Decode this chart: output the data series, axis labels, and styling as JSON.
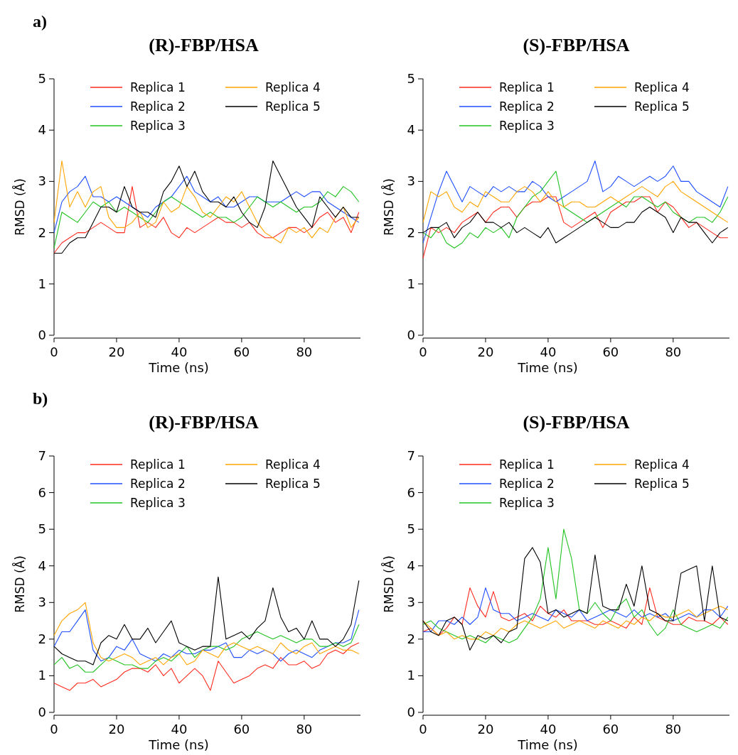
{
  "chart_data": [
    {
      "type": "line",
      "title": "(R)-FBP/HSA",
      "annotations": [
        "a)"
      ],
      "xlabel": "Time (ns)",
      "ylabel": "RMSD (Å)",
      "xlim": [
        0,
        98
      ],
      "xticks": [
        0,
        20,
        40,
        60,
        80
      ],
      "ylim": [
        0,
        5
      ],
      "yticks": [
        0,
        1,
        2,
        3,
        4,
        5
      ],
      "legend": "top right",
      "grid": false,
      "marker": "none",
      "line_style": "solid",
      "x": [
        0,
        2.5,
        5,
        7.5,
        10,
        12.5,
        15,
        17.5,
        20,
        22.5,
        25,
        27.5,
        30,
        32.5,
        35,
        37.5,
        40,
        42.5,
        45,
        47.5,
        50,
        52.5,
        55,
        57.5,
        60,
        62.5,
        65,
        67.5,
        70,
        72.5,
        75,
        77.5,
        80,
        82.5,
        85,
        87.5,
        90,
        92.5,
        95,
        97.5
      ],
      "series": [
        {
          "name": "Replica 1",
          "color": "#ff2a1e",
          "values": [
            1.6,
            1.8,
            1.9,
            2.0,
            2.0,
            2.1,
            2.2,
            2.1,
            2.0,
            2.0,
            2.9,
            2.1,
            2.2,
            2.1,
            2.3,
            2.0,
            1.9,
            2.1,
            2.0,
            2.1,
            2.2,
            2.3,
            2.2,
            2.2,
            2.1,
            2.2,
            2.0,
            1.9,
            1.9,
            2.0,
            2.1,
            2.1,
            2.0,
            2.1,
            2.3,
            2.4,
            2.2,
            2.3,
            2.0,
            2.4
          ]
        },
        {
          "name": "Replica 2",
          "color": "#1f4fff",
          "values": [
            2.0,
            2.6,
            2.8,
            2.9,
            3.1,
            2.7,
            2.7,
            2.6,
            2.7,
            2.6,
            2.5,
            2.4,
            2.3,
            2.5,
            2.6,
            2.7,
            2.9,
            3.1,
            2.8,
            2.7,
            2.6,
            2.7,
            2.5,
            2.5,
            2.6,
            2.7,
            2.7,
            2.6,
            2.6,
            2.6,
            2.7,
            2.8,
            2.7,
            2.8,
            2.8,
            2.6,
            2.5,
            2.4,
            2.3,
            2.2
          ]
        },
        {
          "name": "Replica 3",
          "color": "#22c322",
          "values": [
            1.7,
            2.4,
            2.3,
            2.2,
            2.4,
            2.6,
            2.5,
            2.6,
            2.4,
            2.5,
            2.4,
            2.3,
            2.2,
            2.4,
            2.6,
            2.7,
            2.6,
            2.5,
            2.4,
            2.3,
            2.4,
            2.3,
            2.3,
            2.2,
            2.3,
            2.5,
            2.7,
            2.6,
            2.5,
            2.6,
            2.5,
            2.4,
            2.5,
            2.5,
            2.6,
            2.8,
            2.7,
            2.9,
            2.8,
            2.6
          ]
        },
        {
          "name": "Replica 4",
          "color": "#ffa500",
          "values": [
            2.2,
            3.4,
            2.5,
            2.8,
            2.5,
            2.8,
            2.9,
            2.3,
            2.1,
            2.1,
            2.2,
            2.4,
            2.1,
            2.2,
            2.6,
            2.4,
            2.5,
            2.9,
            2.7,
            2.4,
            2.3,
            2.5,
            2.7,
            2.6,
            2.8,
            2.5,
            2.2,
            2.0,
            1.9,
            1.8,
            2.1,
            2.0,
            2.1,
            1.9,
            2.1,
            2.0,
            2.3,
            2.5,
            2.1,
            2.3
          ]
        },
        {
          "name": "Replica 5",
          "color": "#000000",
          "values": [
            1.6,
            1.6,
            1.8,
            1.9,
            1.9,
            2.2,
            2.5,
            2.5,
            2.4,
            2.9,
            2.5,
            2.4,
            2.4,
            2.3,
            2.8,
            3.0,
            3.3,
            2.9,
            3.2,
            2.8,
            2.6,
            2.6,
            2.5,
            2.7,
            2.4,
            2.2,
            2.1,
            2.5,
            3.4,
            3.1,
            2.8,
            2.5,
            2.3,
            2.1,
            2.7,
            2.5,
            2.3,
            2.5,
            2.3,
            2.3
          ]
        }
      ]
    },
    {
      "type": "line",
      "title": "(S)-FBP/HSA",
      "xlabel": "Time (ns)",
      "ylabel": "RMSD (Å)",
      "xlim": [
        0,
        98
      ],
      "xticks": [
        0,
        20,
        40,
        60,
        80
      ],
      "ylim": [
        0,
        5
      ],
      "yticks": [
        0,
        1,
        2,
        3,
        4,
        5
      ],
      "legend": "top right",
      "grid": false,
      "marker": "none",
      "line_style": "solid",
      "x": [
        0,
        2.5,
        5,
        7.5,
        10,
        12.5,
        15,
        17.5,
        20,
        22.5,
        25,
        27.5,
        30,
        32.5,
        35,
        37.5,
        40,
        42.5,
        45,
        47.5,
        50,
        52.5,
        55,
        57.5,
        60,
        62.5,
        65,
        67.5,
        70,
        72.5,
        75,
        77.5,
        80,
        82.5,
        85,
        87.5,
        90,
        92.5,
        95,
        97.5
      ],
      "series": [
        {
          "name": "Replica 1",
          "color": "#ff2a1e",
          "values": [
            1.5,
            2.1,
            2.0,
            2.1,
            2.0,
            2.2,
            2.3,
            2.4,
            2.2,
            2.4,
            2.5,
            2.5,
            2.3,
            2.5,
            2.6,
            2.6,
            2.7,
            2.7,
            2.2,
            2.1,
            2.2,
            2.3,
            2.4,
            2.1,
            2.4,
            2.5,
            2.6,
            2.6,
            2.7,
            2.7,
            2.4,
            2.6,
            2.5,
            2.3,
            2.1,
            2.2,
            2.1,
            2.0,
            1.9,
            1.9
          ]
        },
        {
          "name": "Replica 2",
          "color": "#1f4fff",
          "values": [
            1.8,
            2.3,
            2.8,
            3.2,
            2.9,
            2.6,
            2.9,
            2.8,
            2.7,
            2.9,
            2.8,
            2.9,
            2.8,
            2.8,
            3.0,
            2.9,
            2.7,
            2.6,
            2.7,
            2.8,
            2.9,
            3.0,
            3.4,
            2.8,
            2.9,
            3.1,
            3.0,
            2.9,
            3.0,
            3.1,
            3.0,
            3.1,
            3.3,
            3.0,
            3.0,
            2.8,
            2.7,
            2.6,
            2.5,
            2.9
          ]
        },
        {
          "name": "Replica 3",
          "color": "#22c322",
          "values": [
            2.0,
            1.9,
            2.1,
            1.8,
            1.7,
            1.8,
            2.0,
            1.9,
            2.1,
            2.0,
            2.1,
            1.9,
            2.3,
            2.5,
            2.7,
            2.8,
            3.0,
            3.2,
            2.5,
            2.4,
            2.3,
            2.2,
            2.3,
            2.4,
            2.5,
            2.6,
            2.5,
            2.7,
            2.7,
            2.6,
            2.5,
            2.6,
            2.4,
            2.3,
            2.2,
            2.3,
            2.3,
            2.2,
            2.4,
            2.7
          ]
        },
        {
          "name": "Replica 4",
          "color": "#ffa500",
          "values": [
            2.2,
            2.8,
            2.7,
            2.8,
            2.5,
            2.4,
            2.6,
            2.5,
            2.8,
            2.7,
            2.6,
            2.6,
            2.8,
            2.9,
            2.8,
            2.6,
            2.8,
            2.6,
            2.5,
            2.6,
            2.6,
            2.5,
            2.5,
            2.6,
            2.7,
            2.6,
            2.7,
            2.8,
            2.9,
            2.8,
            2.7,
            2.9,
            3.0,
            2.8,
            2.7,
            2.6,
            2.5,
            2.4,
            2.3,
            2.2
          ]
        },
        {
          "name": "Replica 5",
          "color": "#000000",
          "values": [
            2.0,
            2.1,
            2.1,
            2.2,
            1.9,
            2.1,
            2.2,
            2.4,
            2.2,
            2.2,
            2.1,
            2.2,
            2.0,
            2.1,
            2.0,
            1.9,
            2.1,
            1.8,
            1.9,
            2.0,
            2.1,
            2.2,
            2.3,
            2.2,
            2.1,
            2.1,
            2.2,
            2.2,
            2.4,
            2.5,
            2.4,
            2.3,
            2.0,
            2.3,
            2.2,
            2.2,
            2.0,
            1.8,
            2.0,
            2.1
          ]
        }
      ]
    },
    {
      "type": "line",
      "title": "(R)-FBP/HSA",
      "annotations": [
        "b)"
      ],
      "xlabel": "Time (ns)",
      "ylabel": "RMSD (Å)",
      "xlim": [
        0,
        98
      ],
      "xticks": [
        0,
        20,
        40,
        60,
        80
      ],
      "ylim": [
        0,
        7
      ],
      "yticks": [
        0,
        1,
        2,
        3,
        4,
        5,
        6,
        7
      ],
      "legend": "top right",
      "grid": false,
      "marker": "none",
      "line_style": "solid",
      "x": [
        0,
        2.5,
        5,
        7.5,
        10,
        12.5,
        15,
        17.5,
        20,
        22.5,
        25,
        27.5,
        30,
        32.5,
        35,
        37.5,
        40,
        42.5,
        45,
        47.5,
        50,
        52.5,
        55,
        57.5,
        60,
        62.5,
        65,
        67.5,
        70,
        72.5,
        75,
        77.5,
        80,
        82.5,
        85,
        87.5,
        90,
        92.5,
        95,
        97.5
      ],
      "series": [
        {
          "name": "Replica 1",
          "color": "#ff2a1e",
          "values": [
            0.8,
            0.7,
            0.6,
            0.8,
            0.8,
            0.9,
            0.7,
            0.8,
            0.9,
            1.1,
            1.2,
            1.2,
            1.1,
            1.3,
            1.0,
            1.2,
            0.8,
            1.0,
            1.2,
            1.0,
            0.6,
            1.4,
            1.1,
            0.8,
            0.9,
            1.0,
            1.2,
            1.3,
            1.2,
            1.5,
            1.3,
            1.3,
            1.4,
            1.2,
            1.3,
            1.6,
            1.7,
            1.6,
            1.8,
            1.9
          ]
        },
        {
          "name": "Replica 2",
          "color": "#1f4fff",
          "values": [
            1.8,
            2.2,
            2.2,
            2.5,
            2.8,
            1.7,
            1.4,
            1.5,
            1.8,
            1.7,
            2.0,
            1.6,
            1.5,
            1.4,
            1.6,
            1.5,
            1.7,
            1.6,
            1.6,
            1.7,
            1.7,
            1.8,
            1.9,
            1.5,
            1.5,
            1.7,
            1.6,
            1.7,
            1.6,
            1.4,
            1.6,
            1.7,
            1.6,
            1.5,
            1.7,
            1.8,
            1.9,
            1.9,
            2.0,
            2.8
          ]
        },
        {
          "name": "Replica 3",
          "color": "#22c322",
          "values": [
            1.3,
            1.5,
            1.2,
            1.3,
            1.1,
            1.1,
            1.3,
            1.5,
            1.4,
            1.3,
            1.3,
            1.2,
            1.2,
            1.4,
            1.5,
            1.4,
            1.6,
            1.8,
            1.5,
            1.7,
            1.8,
            1.8,
            1.7,
            1.8,
            2.0,
            2.1,
            2.2,
            2.1,
            2.0,
            2.1,
            2.0,
            1.9,
            2.0,
            2.0,
            1.8,
            1.8,
            1.9,
            1.8,
            1.9,
            2.4
          ]
        },
        {
          "name": "Replica 4",
          "color": "#ffa500",
          "values": [
            2.1,
            2.5,
            2.7,
            2.8,
            3.0,
            1.9,
            1.5,
            1.4,
            1.5,
            1.6,
            1.5,
            1.3,
            1.4,
            1.5,
            1.3,
            1.5,
            1.6,
            1.3,
            1.4,
            1.7,
            1.6,
            1.5,
            1.8,
            1.9,
            1.8,
            1.7,
            1.8,
            1.7,
            1.6,
            1.9,
            1.7,
            1.6,
            1.8,
            1.9,
            1.6,
            1.7,
            1.8,
            1.7,
            1.7,
            1.6
          ]
        },
        {
          "name": "Replica 5",
          "color": "#000000",
          "values": [
            1.8,
            1.6,
            1.5,
            1.4,
            1.4,
            1.3,
            1.9,
            2.1,
            2.0,
            2.4,
            2.0,
            2.0,
            2.3,
            1.9,
            2.2,
            2.5,
            1.9,
            1.8,
            1.7,
            1.8,
            1.8,
            3.7,
            2.0,
            2.1,
            2.2,
            2.0,
            2.3,
            2.5,
            3.4,
            2.6,
            2.2,
            2.3,
            2.0,
            2.5,
            2.0,
            2.0,
            1.8,
            2.0,
            2.4,
            3.6
          ]
        }
      ]
    },
    {
      "type": "line",
      "title": "(S)-FBP/HSA",
      "xlabel": "Time (ns)",
      "ylabel": "RMSD (Å)",
      "xlim": [
        0,
        98
      ],
      "xticks": [
        0,
        20,
        40,
        60,
        80
      ],
      "ylim": [
        0,
        7
      ],
      "yticks": [
        0,
        1,
        2,
        3,
        4,
        5,
        6,
        7
      ],
      "legend": "top right",
      "grid": false,
      "marker": "none",
      "line_style": "solid",
      "x": [
        0,
        2.5,
        5,
        7.5,
        10,
        12.5,
        15,
        17.5,
        20,
        22.5,
        25,
        27.5,
        30,
        32.5,
        35,
        37.5,
        40,
        42.5,
        45,
        47.5,
        50,
        52.5,
        55,
        57.5,
        60,
        62.5,
        65,
        67.5,
        70,
        72.5,
        75,
        77.5,
        80,
        82.5,
        85,
        87.5,
        90,
        92.5,
        95,
        97.5
      ],
      "series": [
        {
          "name": "Replica 1",
          "color": "#ff2a1e",
          "values": [
            2.2,
            2.3,
            2.1,
            2.3,
            2.6,
            2.4,
            3.4,
            2.9,
            2.6,
            3.3,
            2.6,
            2.5,
            2.6,
            2.7,
            2.5,
            2.9,
            2.7,
            2.6,
            2.8,
            2.5,
            2.5,
            2.5,
            2.4,
            2.4,
            2.5,
            2.4,
            2.3,
            2.6,
            2.4,
            3.4,
            2.6,
            2.5,
            2.4,
            2.4,
            2.6,
            2.5,
            2.5,
            2.4,
            2.6,
            2.4
          ]
        },
        {
          "name": "Replica 2",
          "color": "#1f4fff",
          "values": [
            2.2,
            2.2,
            2.5,
            2.5,
            2.4,
            2.6,
            2.4,
            2.6,
            3.4,
            2.8,
            2.7,
            2.7,
            2.5,
            2.6,
            2.7,
            2.6,
            2.5,
            2.8,
            2.7,
            2.6,
            2.8,
            2.5,
            2.6,
            2.7,
            2.8,
            2.7,
            2.6,
            2.8,
            2.6,
            2.7,
            2.6,
            2.7,
            2.5,
            2.6,
            2.7,
            2.6,
            2.8,
            2.8,
            2.6,
            2.9
          ]
        },
        {
          "name": "Replica 3",
          "color": "#22c322",
          "values": [
            2.4,
            2.5,
            2.3,
            2.2,
            2.1,
            2.0,
            2.1,
            2.0,
            1.9,
            2.1,
            2.0,
            1.9,
            2.0,
            2.3,
            2.6,
            3.1,
            4.5,
            3.1,
            5.0,
            4.2,
            2.8,
            2.7,
            3.0,
            2.7,
            2.5,
            2.9,
            3.1,
            2.6,
            2.8,
            2.4,
            2.1,
            2.3,
            2.8,
            2.4,
            2.3,
            2.2,
            2.3,
            2.4,
            2.3,
            2.6
          ]
        },
        {
          "name": "Replica 4",
          "color": "#ffa500",
          "values": [
            2.5,
            2.3,
            2.1,
            2.2,
            2.0,
            2.1,
            2.0,
            2.0,
            2.2,
            2.1,
            2.3,
            2.2,
            2.4,
            2.5,
            2.4,
            2.3,
            2.4,
            2.5,
            2.3,
            2.4,
            2.5,
            2.4,
            2.3,
            2.5,
            2.4,
            2.3,
            2.5,
            2.4,
            2.6,
            2.5,
            2.7,
            2.6,
            2.6,
            2.7,
            2.8,
            2.6,
            2.7,
            2.8,
            2.9,
            2.8
          ]
        },
        {
          "name": "Replica 5",
          "color": "#000000",
          "values": [
            2.5,
            2.2,
            2.1,
            2.5,
            2.6,
            2.4,
            1.7,
            2.1,
            2.0,
            2.1,
            1.9,
            2.2,
            2.3,
            4.2,
            4.5,
            4.1,
            2.7,
            2.8,
            2.6,
            2.7,
            2.8,
            2.7,
            4.3,
            2.9,
            2.8,
            2.8,
            3.5,
            2.9,
            4.0,
            2.8,
            2.7,
            2.5,
            2.5,
            3.8,
            3.9,
            4.0,
            2.5,
            4.0,
            2.6,
            2.5
          ]
        }
      ]
    }
  ]
}
